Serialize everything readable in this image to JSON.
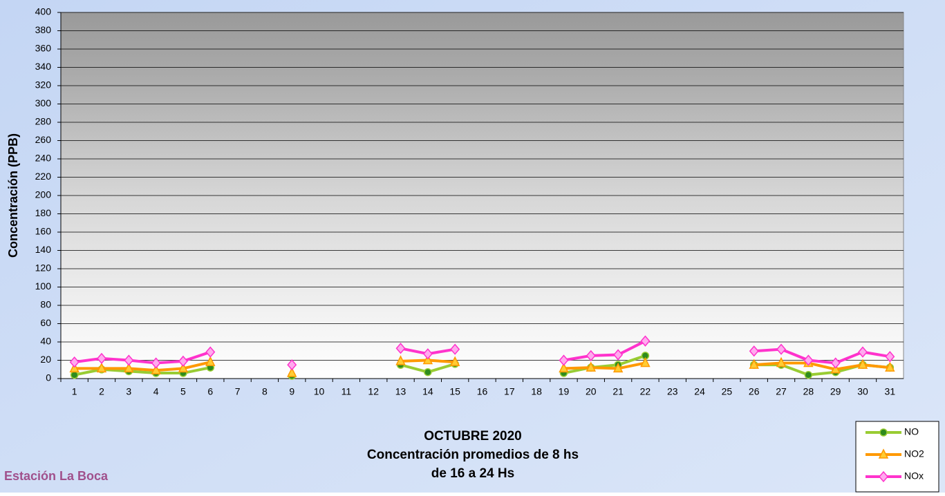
{
  "chart_data": {
    "type": "line",
    "title": "OCTUBRE 2020",
    "subtitle": [
      "Concentración promedios de 8 hs",
      "de 16 a 24 Hs"
    ],
    "station": "Estación La Boca",
    "y_label": "Concentración  (PPB)",
    "categories": [
      "1",
      "2",
      "3",
      "4",
      "5",
      "6",
      "7",
      "8",
      "9",
      "10",
      "11",
      "12",
      "13",
      "14",
      "15",
      "16",
      "17",
      "18",
      "19",
      "20",
      "21",
      "22",
      "23",
      "24",
      "25",
      "26",
      "27",
      "28",
      "29",
      "30",
      "31"
    ],
    "series": [
      {
        "name": "NO",
        "color": "#99cc33",
        "marker": "circle",
        "marker_color": "#2e8b1e",
        "values": [
          4,
          10,
          8,
          6,
          6,
          12,
          null,
          null,
          3,
          null,
          null,
          null,
          15,
          7,
          16,
          null,
          null,
          null,
          6,
          12,
          15,
          25,
          null,
          null,
          null,
          15,
          15,
          4,
          7,
          15,
          12
        ]
      },
      {
        "name": "NO2",
        "color": "#ff9900",
        "marker": "triangle",
        "marker_color": "#ffcc33",
        "values": [
          11,
          11,
          11,
          9,
          11,
          18,
          null,
          null,
          6,
          null,
          null,
          null,
          19,
          20,
          18,
          null,
          null,
          null,
          11,
          12,
          11,
          17,
          null,
          null,
          null,
          15,
          17,
          17,
          10,
          15,
          12
        ]
      },
      {
        "name": "NOx",
        "color": "#ff33cc",
        "marker": "diamond",
        "marker_color": "#ffaaee",
        "values": [
          18,
          22,
          20,
          17,
          19,
          29,
          null,
          null,
          15,
          null,
          null,
          null,
          33,
          27,
          32,
          null,
          null,
          null,
          20,
          25,
          26,
          41,
          null,
          null,
          null,
          30,
          32,
          20,
          17,
          29,
          24
        ]
      }
    ],
    "ylim": [
      0,
      400
    ],
    "yticks": [
      0,
      20,
      40,
      60,
      80,
      100,
      120,
      140,
      160,
      180,
      200,
      220,
      240,
      260,
      280,
      300,
      320,
      340,
      360,
      380,
      400
    ],
    "grid": true
  }
}
